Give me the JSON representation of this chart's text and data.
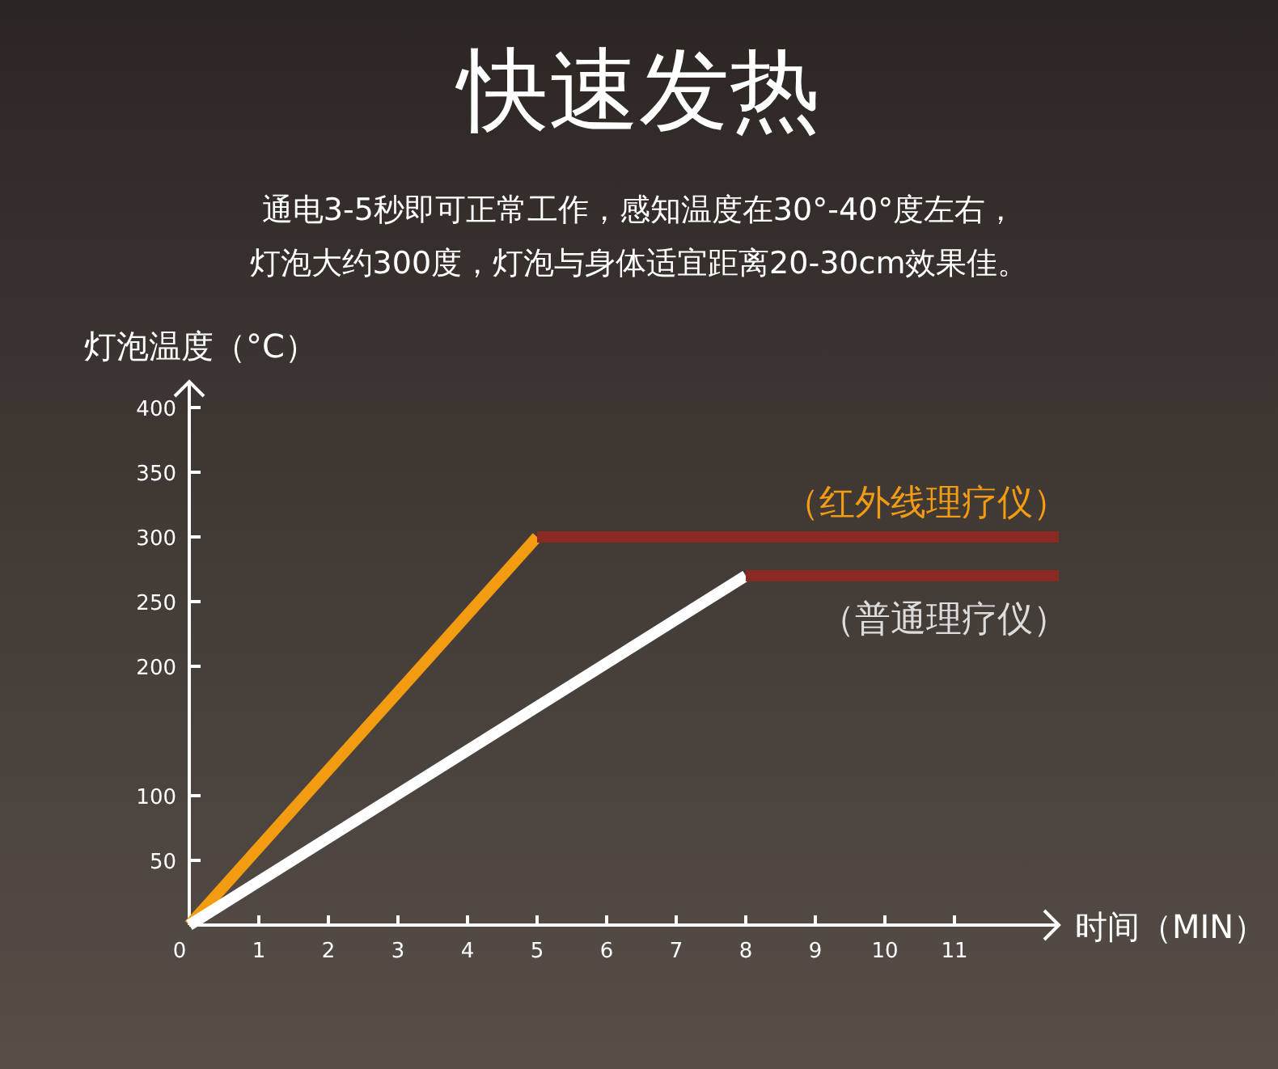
{
  "chart_data": {
    "type": "line",
    "title": "快速发热",
    "subtitle": "通电3-5秒即可正常工作，感知温度在30°-40°度左右，",
    "annotations": [
      "灯泡大约300度，灯泡与身体适宜距离20-30cm效果佳。"
    ],
    "xlabel": "时间（MIN）",
    "ylabel": "灯泡温度（°C）",
    "xlim": [
      0,
      12.5
    ],
    "xticks": [
      0,
      1,
      2,
      3,
      4,
      5,
      6,
      7,
      8,
      9,
      10,
      11
    ],
    "ylim": [
      0,
      420
    ],
    "yticks": [
      50,
      100,
      200,
      250,
      300,
      350,
      400
    ],
    "grid": false,
    "marker": "none",
    "line_style": "solid",
    "series": [
      {
        "name": "（红外线理疗仪）",
        "color": "#f39c12",
        "x": [
          0,
          5
        ],
        "values": [
          0,
          300
        ]
      },
      {
        "color": "#8b2a22",
        "x": [
          5,
          12.5
        ],
        "values": [
          300,
          300
        ]
      },
      {
        "name": "（普通理疗仪）",
        "color": "#ffffff",
        "x": [
          0,
          8
        ],
        "values": [
          0,
          270
        ]
      },
      {
        "color": "#8b2a22",
        "x": [
          8,
          12.5
        ],
        "values": [
          270,
          270
        ]
      }
    ]
  }
}
